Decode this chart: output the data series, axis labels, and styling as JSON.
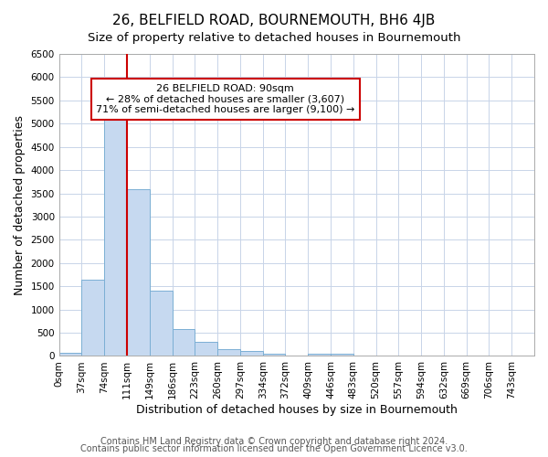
{
  "title": "26, BELFIELD ROAD, BOURNEMOUTH, BH6 4JB",
  "subtitle": "Size of property relative to detached houses in Bournemouth",
  "xlabel": "Distribution of detached houses by size in Bournemouth",
  "ylabel": "Number of detached properties",
  "footnote1": "Contains HM Land Registry data © Crown copyright and database right 2024.",
  "footnote2": "Contains public sector information licensed under the Open Government Licence v3.0.",
  "bar_labels": [
    "0sqm",
    "37sqm",
    "74sqm",
    "111sqm",
    "149sqm",
    "186sqm",
    "223sqm",
    "260sqm",
    "297sqm",
    "334sqm",
    "372sqm",
    "409sqm",
    "446sqm",
    "483sqm",
    "520sqm",
    "557sqm",
    "594sqm",
    "632sqm",
    "669sqm",
    "706sqm",
    "743sqm"
  ],
  "bar_values": [
    75,
    1650,
    5080,
    3580,
    1400,
    580,
    300,
    150,
    100,
    50,
    0,
    50,
    50,
    0,
    0,
    0,
    0,
    0,
    0,
    0,
    0
  ],
  "bar_color": "#c6d9f0",
  "bar_edge_color": "#7bafd4",
  "ylim": [
    0,
    6500
  ],
  "yticks": [
    0,
    500,
    1000,
    1500,
    2000,
    2500,
    3000,
    3500,
    4000,
    4500,
    5000,
    5500,
    6000,
    6500
  ],
  "annotation_title": "26 BELFIELD ROAD: 90sqm",
  "annotation_line1": "← 28% of detached houses are smaller (3,607)",
  "annotation_line2": "71% of semi-detached houses are larger (9,100) →",
  "annotation_box_color": "#ffffff",
  "annotation_box_edgecolor": "#cc0000",
  "property_line_color": "#cc0000",
  "background_color": "#ffffff",
  "grid_color": "#c8d4e8",
  "title_fontsize": 11,
  "subtitle_fontsize": 9.5,
  "axis_label_fontsize": 9,
  "tick_fontsize": 7.5,
  "footnote_fontsize": 7
}
